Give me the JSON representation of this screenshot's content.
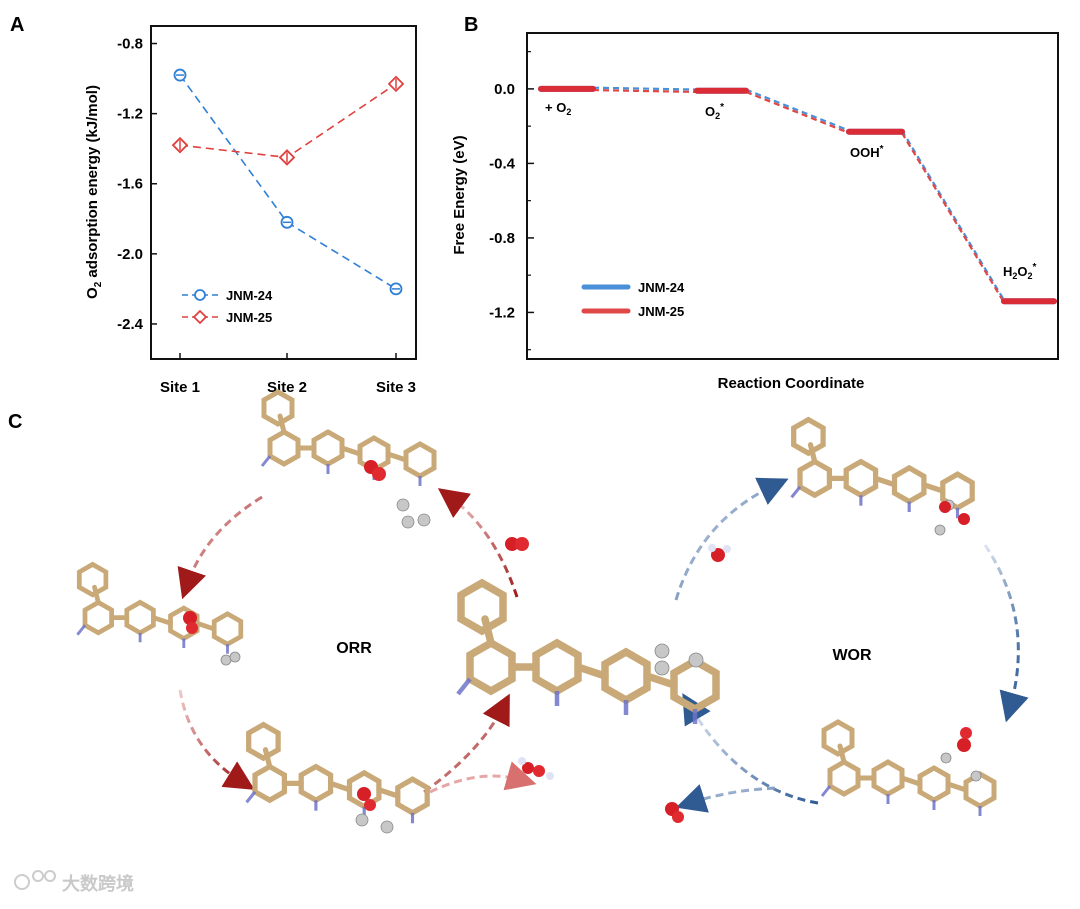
{
  "panel_letters": {
    "a": "A",
    "b": "B",
    "c": "C"
  },
  "chart_data": [
    {
      "panel": "A",
      "type": "line",
      "title": "",
      "xlabel": "",
      "ylabel_main": "O",
      "ylabel_sub": "2",
      "ylabel_rest": " adsorption energy (kJ/mol)",
      "categories": [
        "Site 1",
        "Site 2",
        "Site 3"
      ],
      "ylim": [
        -2.6,
        -0.7
      ],
      "yticks": [
        -0.8,
        -1.2,
        -1.6,
        -2.0,
        -2.4
      ],
      "ytick_labels": [
        "-0.8",
        "-1.2",
        "-1.6",
        "-2.0",
        "-2.4"
      ],
      "series": [
        {
          "name": "JNM-24",
          "marker": "circle",
          "color": "#2f7fd6",
          "values": [
            -0.98,
            -1.82,
            -2.2
          ]
        },
        {
          "name": "JNM-25",
          "marker": "diamond",
          "color": "#e0403e",
          "values": [
            -1.38,
            -1.45,
            -1.03
          ]
        }
      ],
      "legend_position": "lower-left"
    },
    {
      "panel": "B",
      "type": "line",
      "title": "",
      "xlabel": "Reaction Coordinate",
      "ylabel": "Free Energy (eV)",
      "ylim": [
        -1.45,
        0.3
      ],
      "yticks": [
        0.0,
        -0.4,
        -0.8,
        -1.2
      ],
      "ytick_labels": [
        "0.0",
        "-0.4",
        "-0.8",
        "-1.2"
      ],
      "steps": [
        {
          "label_main": "+ O",
          "label_sub": "2",
          "label_sup": ""
        },
        {
          "label_main": "O",
          "label_sub": "2",
          "label_sup": "*"
        },
        {
          "label_main": "OOH",
          "label_sub": "",
          "label_sup": "*"
        },
        {
          "label_main": "H",
          "label_sub": "2",
          "label_main2": "O",
          "label_sub2": "2",
          "label_sup": "*"
        }
      ],
      "series": [
        {
          "name": "JNM-24",
          "color": "#4a90d9",
          "values": [
            0.0,
            -0.01,
            -0.23,
            -1.14
          ]
        },
        {
          "name": "JNM-25",
          "color": "#e04848",
          "values": [
            0.0,
            -0.01,
            -0.23,
            -1.14
          ]
        }
      ],
      "legend_position": "lower-left"
    }
  ],
  "panel_c": {
    "left_cycle_label": "ORR",
    "right_cycle_label": "WOR"
  },
  "watermark": "大数跨境"
}
